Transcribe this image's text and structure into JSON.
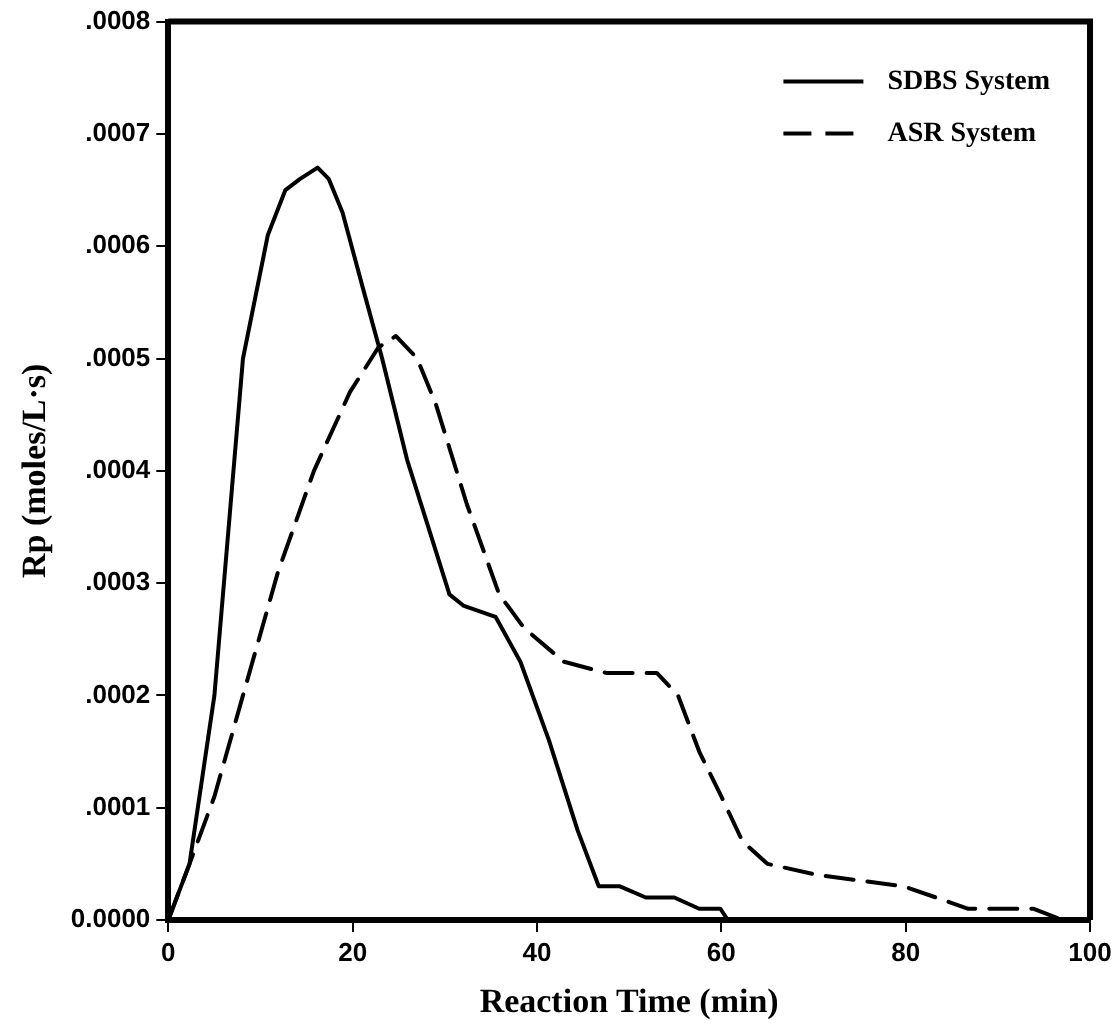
{
  "chart_data": {
    "type": "line",
    "xlabel": "Reaction Time (min)",
    "ylabel": "Rp (moles/L·s)",
    "xlim": [
      0,
      100
    ],
    "xticks": [
      0,
      20,
      40,
      60,
      80,
      100
    ],
    "ylim": [
      0,
      0.0008
    ],
    "yticks": [
      {
        "value": 0,
        "label": "0.0000"
      },
      {
        "value": 0.0001,
        "label": ".0001"
      },
      {
        "value": 0.0002,
        "label": ".0002"
      },
      {
        "value": 0.0003,
        "label": ".0003"
      },
      {
        "value": 0.0004,
        "label": ".0004"
      },
      {
        "value": 0.0005,
        "label": ".0005"
      },
      {
        "value": 0.0006,
        "label": ".0006"
      },
      {
        "value": 0.0007,
        "label": ".0007"
      },
      {
        "value": 0.0008,
        "label": ".0008"
      }
    ],
    "grid": false,
    "legend": "top right",
    "marker": "none",
    "series": [
      {
        "name": "SDBS System",
        "color": "#000000",
        "line_style": "solid",
        "x": [
          0,
          2.3,
          5,
          8.1,
          10.8,
          12.7,
          14.3,
          16.2,
          17.4,
          18.9,
          21.2,
          23.2,
          25.9,
          28.2,
          30.5,
          32,
          35.5,
          38.2,
          41.3,
          44.4,
          46.7,
          49,
          51.8,
          54.9,
          57.6,
          59.9,
          60.7
        ],
        "values": [
          0,
          5e-05,
          0.0002,
          0.0005,
          0.00061,
          0.00065,
          0.00066,
          0.00067,
          0.00066,
          0.00063,
          0.00056,
          0.0005,
          0.00041,
          0.00035,
          0.00029,
          0.00028,
          0.00027,
          0.00023,
          0.00016,
          8e-05,
          3e-05,
          3e-05,
          2e-05,
          2e-05,
          1e-05,
          1e-05,
          0
        ]
      },
      {
        "name": "ASR System",
        "color": "#000000",
        "line_style": "dashed",
        "x": [
          0,
          2.3,
          5,
          8.1,
          11.9,
          15.8,
          19.7,
          22.8,
          24.7,
          27,
          29,
          32.4,
          35.9,
          38.6,
          42.9,
          47.5,
          50.6,
          53,
          55.3,
          57.6,
          60,
          62.3,
          65,
          70.5,
          79.8,
          86.8,
          93.9,
          97,
          99.7
        ],
        "values": [
          0,
          5e-05,
          0.00011,
          0.0002,
          0.00031,
          0.0004,
          0.00047,
          0.00051,
          0.00052,
          0.0005,
          0.00046,
          0.00037,
          0.00029,
          0.00026,
          0.00023,
          0.00022,
          0.00022,
          0.00022,
          0.0002,
          0.00015,
          0.00011,
          7e-05,
          5e-05,
          4e-05,
          3e-05,
          1e-05,
          1e-05,
          0,
          0
        ]
      }
    ]
  }
}
